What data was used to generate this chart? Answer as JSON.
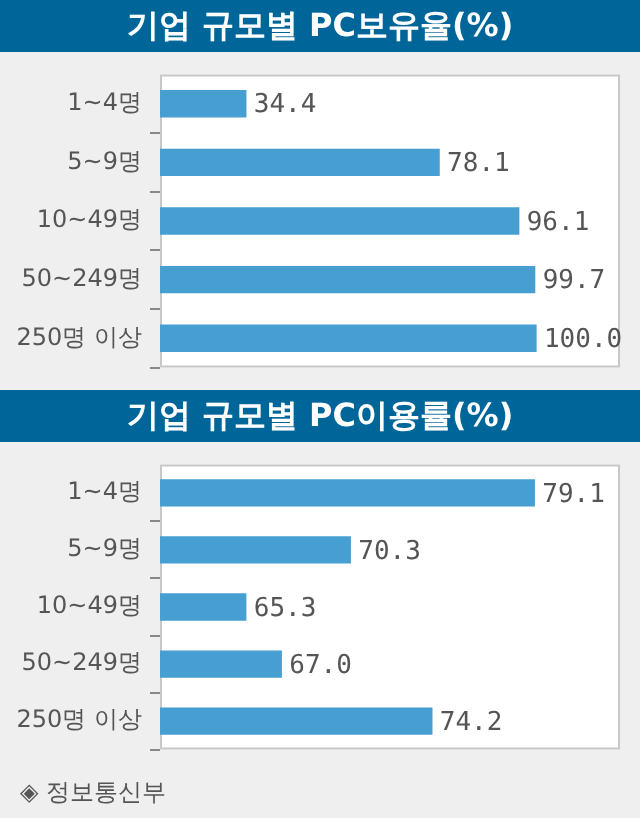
{
  "chart_data": [
    {
      "type": "bar",
      "orientation": "horizontal",
      "title": "기업 규모별 PC보유율(%)",
      "categories": [
        "1~4명",
        "5~9명",
        "10~49명",
        "50~249명",
        "250명 이상"
      ],
      "values": [
        34.4,
        78.1,
        96.1,
        99.7,
        100.0
      ],
      "value_labels": [
        "34.4",
        "78.1",
        "96.1",
        "99.7",
        "100.0"
      ],
      "color": "#469fd0",
      "xlim": [
        15,
        119
      ],
      "grid": false,
      "legend": false,
      "tick_labels": "y"
    },
    {
      "type": "bar",
      "orientation": "horizontal",
      "title": "기업 규모별 PC이용률(%)",
      "categories": [
        "1~4명",
        "5~9명",
        "10~49명",
        "50~249명",
        "250명 이상"
      ],
      "values": [
        79.1,
        70.3,
        65.3,
        67.0,
        74.2
      ],
      "value_labels": [
        "79.1",
        "70.3",
        "65.3",
        "67.0",
        "74.2"
      ],
      "color": "#469fd0",
      "xlim": [
        61.2,
        83.2
      ],
      "grid": false,
      "legend": false,
      "tick_labels": "y",
      "annotations": [
        "◈ 정보통신부"
      ]
    }
  ]
}
